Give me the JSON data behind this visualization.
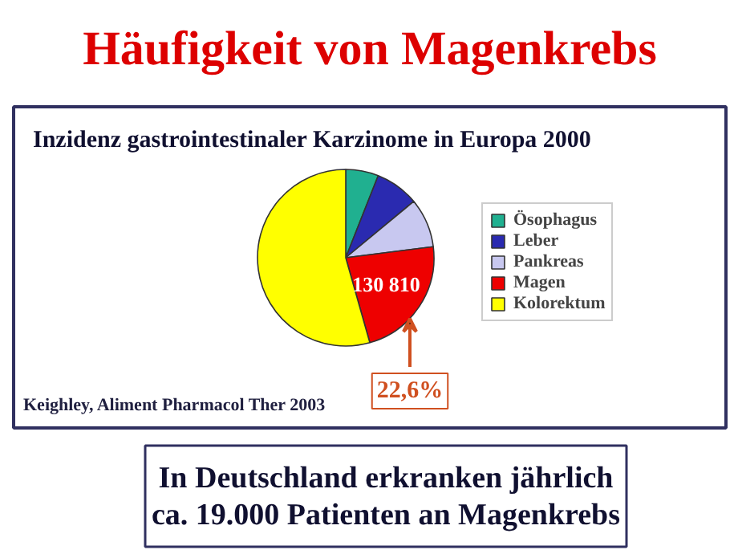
{
  "chart_data": {
    "type": "pie",
    "title": "Häufigkeit von Magenkrebs",
    "subtitle": "Inzidenz gastrointestinaler Karzinome in Europa 2000",
    "categories": [
      "Ösophagus",
      "Leber",
      "Pankreas",
      "Magen",
      "Kolorektum"
    ],
    "values": [
      6,
      8,
      9,
      22.6,
      54.4
    ],
    "colors": [
      "#20b090",
      "#2a2ab0",
      "#c8c8f0",
      "#ee0000",
      "#ffff00"
    ],
    "legend": "right",
    "annotations": [
      "22,6%",
      {
        "text": "130 810",
        "x": "Magen"
      },
      "Keighley, Aliment Pharmacol Ther 2003",
      "In Deutschland erkranken jährlich\nca. 19.000 Patienten an Magenkrebs"
    ]
  }
}
